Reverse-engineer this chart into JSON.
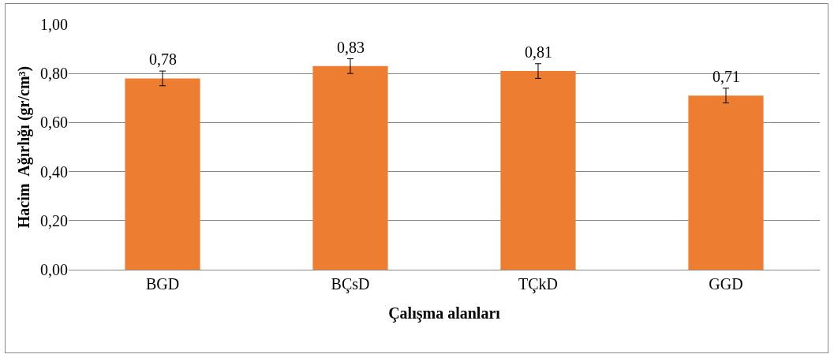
{
  "chart_data": {
    "type": "bar",
    "xlabel": "Çalışma alanları",
    "ylabel": "Hacim  Ağırlığı (gr/cm³)",
    "categories": [
      "BGD",
      "BÇsD",
      "TÇkD",
      "GGD"
    ],
    "values": [
      0.78,
      0.83,
      0.81,
      0.71
    ],
    "errors": [
      0.03,
      0.03,
      0.03,
      0.03
    ],
    "color": "#ed7d31",
    "ylim": [
      0,
      1
    ],
    "yticks": [
      {
        "value": 0,
        "label": "0,00"
      },
      {
        "value": 0.2,
        "label": "0,20"
      },
      {
        "value": 0.4,
        "label": "0,40"
      },
      {
        "value": 0.6,
        "label": "0,60"
      },
      {
        "value": 0.8,
        "label": "0,80"
      },
      {
        "value": 1,
        "label": "1,00"
      }
    ],
    "value_labels": [
      "0,78",
      "0,83",
      "0,81",
      "0,71"
    ],
    "grid": "y",
    "legend": false
  }
}
